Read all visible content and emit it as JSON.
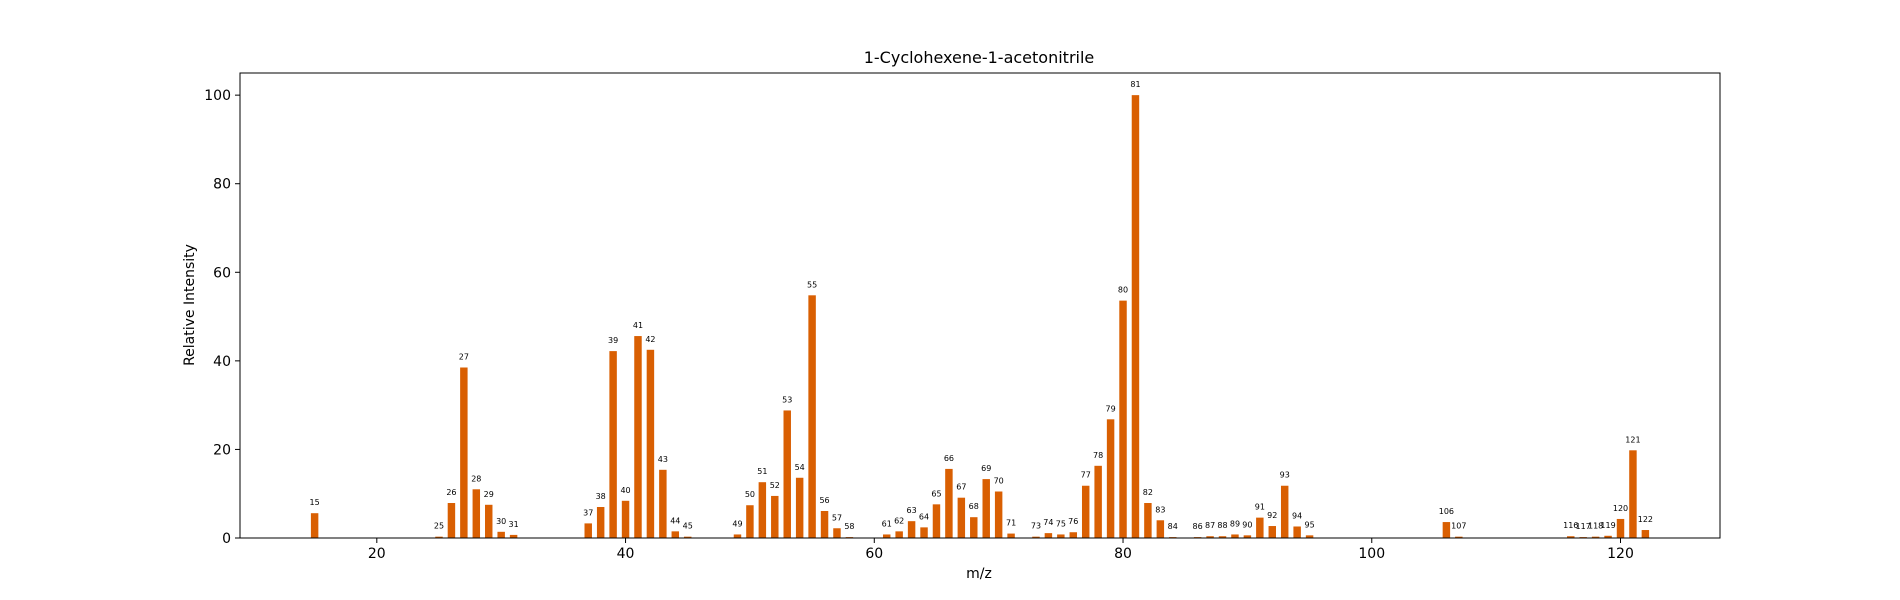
{
  "chart_data": {
    "type": "bar",
    "title": "1-Cyclohexene-1-acetonitrile",
    "xlabel": "m/z",
    "ylabel": "Relative Intensity",
    "xlim": [
      9,
      128
    ],
    "ylim": [
      0,
      105
    ],
    "xticks": [
      20,
      40,
      60,
      80,
      100,
      120
    ],
    "yticks": [
      0,
      20,
      40,
      60,
      80,
      100
    ],
    "grid": false,
    "bar_color": "#d95f02",
    "bars": [
      {
        "mz": 15,
        "intensity": 5.6
      },
      {
        "mz": 25,
        "intensity": 0.3
      },
      {
        "mz": 26,
        "intensity": 7.9
      },
      {
        "mz": 27,
        "intensity": 38.5
      },
      {
        "mz": 28,
        "intensity": 11.0
      },
      {
        "mz": 29,
        "intensity": 7.5
      },
      {
        "mz": 30,
        "intensity": 1.4
      },
      {
        "mz": 31,
        "intensity": 0.7
      },
      {
        "mz": 37,
        "intensity": 3.3
      },
      {
        "mz": 38,
        "intensity": 7.0
      },
      {
        "mz": 39,
        "intensity": 42.2
      },
      {
        "mz": 40,
        "intensity": 8.4
      },
      {
        "mz": 41,
        "intensity": 45.6
      },
      {
        "mz": 42,
        "intensity": 42.5
      },
      {
        "mz": 43,
        "intensity": 15.4
      },
      {
        "mz": 44,
        "intensity": 1.5
      },
      {
        "mz": 45,
        "intensity": 0.3
      },
      {
        "mz": 49,
        "intensity": 0.8
      },
      {
        "mz": 50,
        "intensity": 7.4
      },
      {
        "mz": 51,
        "intensity": 12.6
      },
      {
        "mz": 52,
        "intensity": 9.5
      },
      {
        "mz": 53,
        "intensity": 28.8
      },
      {
        "mz": 54,
        "intensity": 13.6
      },
      {
        "mz": 55,
        "intensity": 54.8
      },
      {
        "mz": 56,
        "intensity": 6.1
      },
      {
        "mz": 57,
        "intensity": 2.2
      },
      {
        "mz": 58,
        "intensity": 0.2
      },
      {
        "mz": 61,
        "intensity": 0.8
      },
      {
        "mz": 62,
        "intensity": 1.5
      },
      {
        "mz": 63,
        "intensity": 3.8
      },
      {
        "mz": 64,
        "intensity": 2.4
      },
      {
        "mz": 65,
        "intensity": 7.6
      },
      {
        "mz": 66,
        "intensity": 15.6
      },
      {
        "mz": 67,
        "intensity": 9.1
      },
      {
        "mz": 68,
        "intensity": 4.7
      },
      {
        "mz": 69,
        "intensity": 13.3
      },
      {
        "mz": 70,
        "intensity": 10.5
      },
      {
        "mz": 71,
        "intensity": 1.0
      },
      {
        "mz": 73,
        "intensity": 0.3
      },
      {
        "mz": 74,
        "intensity": 1.1
      },
      {
        "mz": 75,
        "intensity": 0.8
      },
      {
        "mz": 76,
        "intensity": 1.3
      },
      {
        "mz": 77,
        "intensity": 11.8
      },
      {
        "mz": 78,
        "intensity": 16.3
      },
      {
        "mz": 79,
        "intensity": 26.8
      },
      {
        "mz": 80,
        "intensity": 53.6
      },
      {
        "mz": 81,
        "intensity": 100.0
      },
      {
        "mz": 82,
        "intensity": 7.9
      },
      {
        "mz": 83,
        "intensity": 4.0
      },
      {
        "mz": 84,
        "intensity": 0.2
      },
      {
        "mz": 86,
        "intensity": 0.2
      },
      {
        "mz": 87,
        "intensity": 0.4
      },
      {
        "mz": 88,
        "intensity": 0.4
      },
      {
        "mz": 89,
        "intensity": 0.8
      },
      {
        "mz": 90,
        "intensity": 0.6
      },
      {
        "mz": 91,
        "intensity": 4.6
      },
      {
        "mz": 92,
        "intensity": 2.7
      },
      {
        "mz": 93,
        "intensity": 11.8
      },
      {
        "mz": 94,
        "intensity": 2.6
      },
      {
        "mz": 95,
        "intensity": 0.6
      },
      {
        "mz": 106,
        "intensity": 3.6
      },
      {
        "mz": 107,
        "intensity": 0.3
      },
      {
        "mz": 116,
        "intensity": 0.4
      },
      {
        "mz": 117,
        "intensity": 0.2
      },
      {
        "mz": 118,
        "intensity": 0.3
      },
      {
        "mz": 119,
        "intensity": 0.5
      },
      {
        "mz": 120,
        "intensity": 4.3
      },
      {
        "mz": 121,
        "intensity": 19.8
      },
      {
        "mz": 122,
        "intensity": 1.8
      }
    ]
  }
}
